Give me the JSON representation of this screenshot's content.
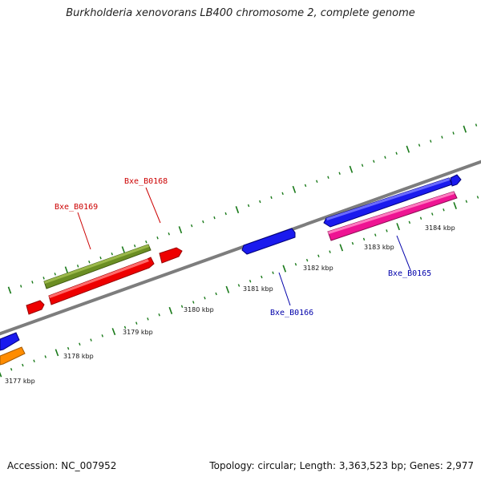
{
  "title": "Burkholderia xenovorans LB400 chromosome 2, complete genome",
  "accession_text": "Accession: NC_007952",
  "summary_text": "Topology: circular; Length: 3,363,523 bp; Genes: 2,977",
  "colors": {
    "backbone": "#8a8a8a",
    "tick": "#1a7a1a",
    "forward_label": "#cc0000",
    "reverse_label": "#0000aa"
  },
  "kbp_labels": [
    "3177 kbp",
    "3178 kbp",
    "3179 kbp",
    "3180 kbp",
    "3181 kbp",
    "3182 kbp",
    "3183 kbp",
    "3184 kbp"
  ],
  "gene_labels": [
    {
      "name": "Bxe_B0168",
      "color": "#cc0000"
    },
    {
      "name": "Bxe_B0169",
      "color": "#cc0000"
    },
    {
      "name": "Bxe_B0166",
      "color": "#0000aa"
    },
    {
      "name": "Bxe_B0165",
      "color": "#0000aa"
    }
  ]
}
